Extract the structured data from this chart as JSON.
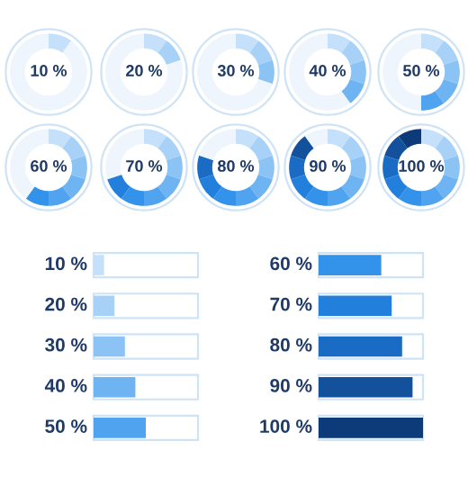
{
  "chart_data": [
    {
      "type": "donut",
      "categories": [
        null,
        null
      ],
      "values": [
        10,
        90
      ],
      "colors": [
        "#c5e0fa",
        "#eef5fc"
      ],
      "annotations": [
        "10 %"
      ]
    },
    {
      "type": "donut",
      "categories": [
        null,
        null,
        null
      ],
      "values": [
        10,
        10,
        80
      ],
      "colors": [
        "#c5e0fa",
        "#a8d1f7",
        "#eef5fc"
      ],
      "annotations": [
        "20 %"
      ]
    },
    {
      "type": "donut",
      "categories": [
        null,
        null,
        null,
        null
      ],
      "values": [
        10,
        10,
        10,
        70
      ],
      "colors": [
        "#c5e0fa",
        "#a8d1f7",
        "#8cc3f5",
        "#eef5fc"
      ],
      "annotations": [
        "30 %"
      ]
    },
    {
      "type": "donut",
      "categories": [
        null,
        null,
        null,
        null,
        null
      ],
      "values": [
        10,
        10,
        10,
        10,
        60
      ],
      "colors": [
        "#c5e0fa",
        "#a8d1f7",
        "#8cc3f5",
        "#6fb4f2",
        "#eef5fc"
      ],
      "annotations": [
        "40 %"
      ]
    },
    {
      "type": "donut",
      "categories": [
        null,
        null,
        null,
        null,
        null,
        null
      ],
      "values": [
        10,
        10,
        10,
        10,
        10,
        50
      ],
      "colors": [
        "#c5e0fa",
        "#a8d1f7",
        "#8cc3f5",
        "#6fb4f2",
        "#4fa3ef",
        "#eef5fc"
      ],
      "annotations": [
        "50 %"
      ]
    },
    {
      "type": "donut",
      "categories": [
        null,
        null,
        null,
        null,
        null,
        null,
        null
      ],
      "values": [
        10,
        10,
        10,
        10,
        10,
        10,
        40
      ],
      "colors": [
        "#c5e0fa",
        "#a8d1f7",
        "#8cc3f5",
        "#6fb4f2",
        "#4fa3ef",
        "#3393ea",
        "#eef5fc"
      ],
      "annotations": [
        "60 %"
      ]
    },
    {
      "type": "donut",
      "categories": [
        null,
        null,
        null,
        null,
        null,
        null,
        null,
        null
      ],
      "values": [
        10,
        10,
        10,
        10,
        10,
        10,
        10,
        30
      ],
      "colors": [
        "#c5e0fa",
        "#a8d1f7",
        "#8cc3f5",
        "#6fb4f2",
        "#4fa3ef",
        "#3393ea",
        "#2280dc",
        "#eef5fc"
      ],
      "annotations": [
        "70 %"
      ]
    },
    {
      "type": "donut",
      "categories": [
        null,
        null,
        null,
        null,
        null,
        null,
        null,
        null,
        null
      ],
      "values": [
        10,
        10,
        10,
        10,
        10,
        10,
        10,
        10,
        20
      ],
      "colors": [
        "#c5e0fa",
        "#a8d1f7",
        "#8cc3f5",
        "#6fb4f2",
        "#4fa3ef",
        "#3393ea",
        "#2280dc",
        "#1a6bc4",
        "#eef5fc"
      ],
      "annotations": [
        "80 %"
      ]
    },
    {
      "type": "donut",
      "categories": [
        null,
        null,
        null,
        null,
        null,
        null,
        null,
        null,
        null,
        null
      ],
      "values": [
        10,
        10,
        10,
        10,
        10,
        10,
        10,
        10,
        10,
        10
      ],
      "colors": [
        "#c5e0fa",
        "#a8d1f7",
        "#8cc3f5",
        "#6fb4f2",
        "#4fa3ef",
        "#3393ea",
        "#2280dc",
        "#1a6bc4",
        "#13519c",
        "#eef5fc"
      ],
      "annotations": [
        "90 %"
      ]
    },
    {
      "type": "donut",
      "categories": [
        null,
        null,
        null,
        null,
        null,
        null,
        null,
        null,
        null,
        null
      ],
      "values": [
        10,
        10,
        10,
        10,
        10,
        10,
        10,
        10,
        10,
        10
      ],
      "colors": [
        "#c5e0fa",
        "#a8d1f7",
        "#8cc3f5",
        "#6fb4f2",
        "#4fa3ef",
        "#3393ea",
        "#2280dc",
        "#1a6bc4",
        "#13519c",
        "#0d3a78"
      ],
      "annotations": [
        "100 %"
      ]
    },
    {
      "type": "bar",
      "orientation": "horizontal",
      "categories": [
        null,
        null,
        null,
        null,
        null
      ],
      "values": [
        10,
        20,
        30,
        40,
        50
      ],
      "value_labels": [
        "10 %",
        "20 %",
        "30 %",
        "40 %",
        "50 %"
      ],
      "colors": [
        "#c5e0fa",
        "#a8d1f7",
        "#8cc3f5",
        "#6fb4f2",
        "#4fa3ef"
      ],
      "xlim": [
        0,
        100
      ]
    },
    {
      "type": "bar",
      "orientation": "horizontal",
      "categories": [
        null,
        null,
        null,
        null,
        null
      ],
      "values": [
        60,
        70,
        80,
        90,
        100
      ],
      "value_labels": [
        "60 %",
        "70 %",
        "80 %",
        "90 %",
        "100 %"
      ],
      "colors": [
        "#3393ea",
        "#2280dc",
        "#1a6bc4",
        "#13519c",
        "#0d3a78"
      ],
      "xlim": [
        0,
        100
      ]
    }
  ]
}
